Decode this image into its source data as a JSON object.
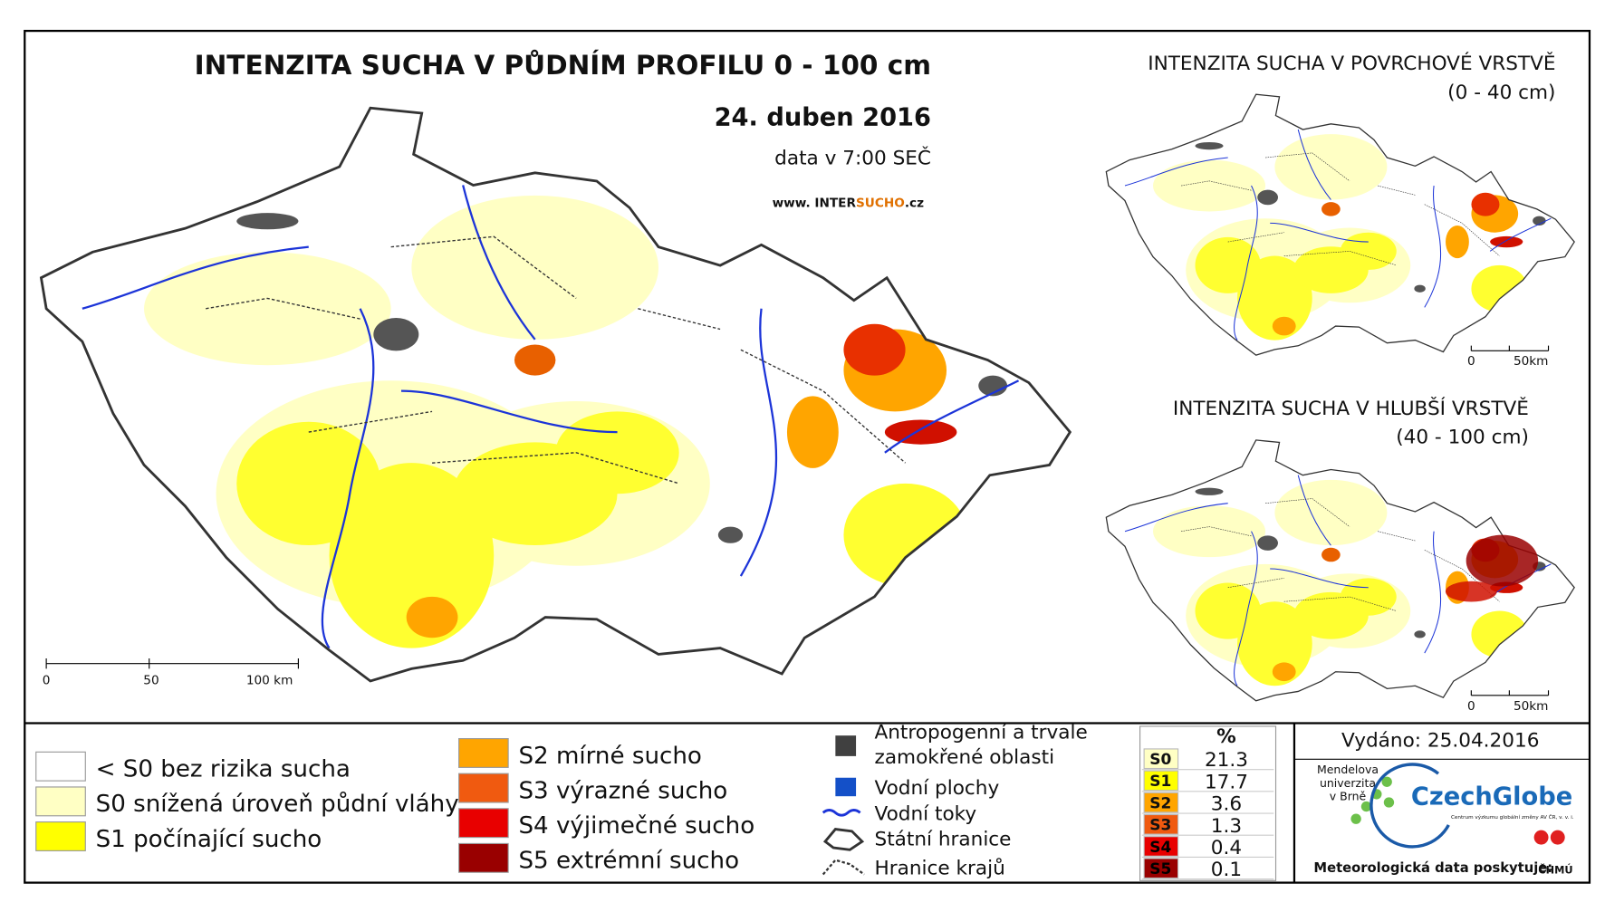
{
  "main_map": {
    "title": "INTENZITA SUCHA V PŮDNÍM PROFILU 0 - 100 cm",
    "date": "24. duben 2016",
    "data_time": "data v 7:00 SEČ",
    "website": {
      "prefix": "www. ",
      "brand_a": "INTER",
      "brand_b": "SUCHO",
      "suffix": ".cz"
    },
    "scale_labels": [
      "0",
      "50",
      "100 km"
    ]
  },
  "surface_inset": {
    "title": "INTENZITA SUCHA V POVRCHOVÉ VRSTVĚ",
    "depth": "(0 - 40 cm)",
    "scale_labels": [
      "0",
      "50km"
    ]
  },
  "deep_inset": {
    "title": "INTENZITA SUCHA V HLUBŠÍ VRSTVĚ",
    "depth": "(40 - 100 cm)",
    "scale_labels": [
      "0",
      "50km"
    ]
  },
  "legend": {
    "drought_classes": [
      {
        "label": "< S0 bez rizika sucha",
        "color": "#ffffff"
      },
      {
        "label": "S0 snížená úroveň půdní vláhy",
        "color": "#ffffc4"
      },
      {
        "label": "S1 počínající sucho",
        "color": "#ffff00"
      },
      {
        "label": "S2 mírné sucho",
        "color": "#ffa500"
      },
      {
        "label": "S3 výrazné sucho",
        "color": "#f05a10"
      },
      {
        "label": "S4 výjimečné sucho",
        "color": "#e80000"
      },
      {
        "label": "S5 extrémní sucho",
        "color": "#990000"
      }
    ],
    "map_symbols": [
      {
        "lines": [
          "Antropogenní a trvale",
          "zamokřené oblasti"
        ]
      },
      {
        "lines": [
          "Vodní plochy"
        ]
      },
      {
        "lines": [
          "Vodní toky"
        ]
      },
      {
        "lines": [
          "Státní hranice"
        ]
      },
      {
        "lines": [
          "Hranice krajů"
        ]
      }
    ]
  },
  "statistics": {
    "header": "%",
    "rows": [
      {
        "code": "S0",
        "value": 21.3,
        "color": "#ffffc4"
      },
      {
        "code": "S1",
        "value": 17.7,
        "color": "#ffff00"
      },
      {
        "code": "S2",
        "value": 3.6,
        "color": "#ffa500"
      },
      {
        "code": "S3",
        "value": 1.3,
        "color": "#f05a10"
      },
      {
        "code": "S4",
        "value": 0.4,
        "color": "#e80000"
      },
      {
        "code": "S5",
        "value": 0.1,
        "color": "#990000"
      }
    ]
  },
  "footer": {
    "issued": "Vydáno: 25.04.2016",
    "mendel": [
      "Mendelova",
      "univerzita",
      "v Brně"
    ],
    "czechglobe": "CzechGlobe",
    "czechglobe_sub": "Centrum výzkumu globální změny AV ČR, v. v. i.",
    "data_provider": "Meteorologická data poskytuje:",
    "chmu": "ČHMÚ"
  }
}
